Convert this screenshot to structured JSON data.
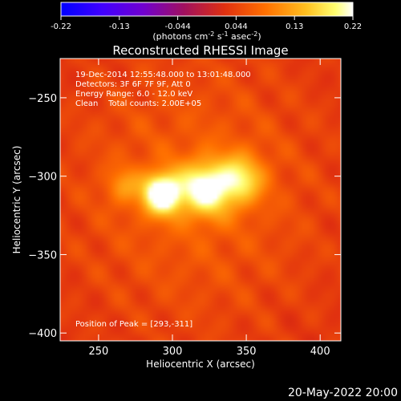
{
  "footer_date": "20-May-2022 20:00",
  "colorbar": {
    "ticks": [
      "-0.22",
      "-0.13",
      "-0.044",
      "0.044",
      "0.13",
      "0.22"
    ],
    "unit_text": "(photons cm",
    "unit_exp1": "-2",
    "unit_mid": " s",
    "unit_exp2": "-1",
    "unit_mid2": " asec",
    "unit_exp3": "-2",
    "unit_close": ")"
  },
  "chart_data": {
    "type": "heatmap",
    "title": "Reconstructed RHESSI Image",
    "xlabel": "Heliocentric X (arcsec)",
    "ylabel": "Heliocentric Y (arcsec)",
    "xlim": [
      224,
      414
    ],
    "ylim": [
      -405,
      -225
    ],
    "xticks": [
      250,
      300,
      350,
      400
    ],
    "yticks": [
      -250,
      -300,
      -350,
      -400
    ],
    "value_range": [
      -0.22,
      0.22
    ],
    "colormap": [
      "#0000ff",
      "#7a00ff",
      "#9c00a0",
      "#c81e1e",
      "#ff5a00",
      "#ffb000",
      "#ffff66",
      "#ffffff"
    ],
    "annotations": [
      "19-Dec-2014 12:55:48.000 to 13:01:48.000",
      "Detectors: 3F 6F 7F 9F, Att 0",
      "Energy Range: 6.0 - 12.0 keV",
      "Clean    Total counts: 2.00E+05"
    ],
    "peak_label": "Position of Peak = [293,-311]",
    "peak": [
      293,
      -311
    ],
    "sources": [
      {
        "x": 293,
        "y": -311,
        "amp": 0.22,
        "sigma": 9
      },
      {
        "x": 322,
        "y": -308,
        "amp": 0.17,
        "sigma": 12
      },
      {
        "x": 346,
        "y": -302,
        "amp": 0.12,
        "sigma": 11
      },
      {
        "x": 267,
        "y": -306,
        "amp": 0.06,
        "sigma": 8
      }
    ]
  }
}
